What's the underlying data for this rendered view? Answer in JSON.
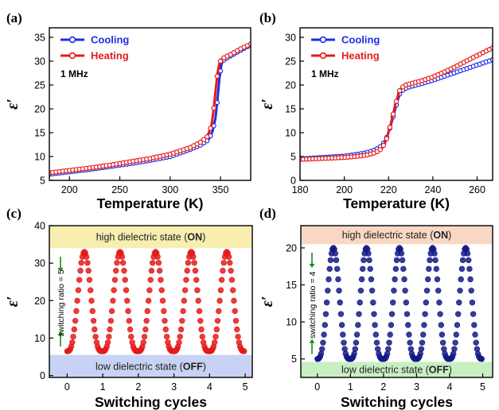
{
  "chart_data": [
    {
      "panel": "(a)",
      "type": "line",
      "xlabel": "Temperature (K)",
      "ylabel": "ε′",
      "xlim": [
        180,
        380
      ],
      "ylim": [
        5,
        37
      ],
      "x_ticks": [
        200,
        250,
        300,
        350
      ],
      "y_ticks": [
        5,
        10,
        15,
        20,
        25,
        30,
        35
      ],
      "annotation": "1 MHz",
      "legend_position": "top-left",
      "series": [
        {
          "name": "Cooling",
          "color": "#1e2de6",
          "x": [
            180,
            200,
            220,
            240,
            260,
            280,
            300,
            320,
            330,
            338,
            342,
            345,
            347,
            349,
            351,
            353,
            356,
            360,
            365,
            370,
            375,
            380
          ],
          "y": [
            6.3,
            6.8,
            7.3,
            7.9,
            8.5,
            9.2,
            10.0,
            11.5,
            12.4,
            13.5,
            15.2,
            18.0,
            22.0,
            26.5,
            29.4,
            30.2,
            30.6,
            31.1,
            31.7,
            32.3,
            32.9,
            33.4
          ]
        },
        {
          "name": "Heating",
          "color": "#e41a1a",
          "x": [
            180,
            200,
            220,
            240,
            260,
            280,
            300,
            320,
            330,
            337,
            341,
            343,
            345,
            347,
            349,
            351,
            355,
            360,
            365,
            370,
            375,
            380
          ],
          "y": [
            6.6,
            7.1,
            7.6,
            8.2,
            8.9,
            9.6,
            10.5,
            11.9,
            13.0,
            14.2,
            16.5,
            19.5,
            23.5,
            27.5,
            29.6,
            30.4,
            30.9,
            31.4,
            32.0,
            32.6,
            33.1,
            33.6
          ]
        }
      ]
    },
    {
      "panel": "(b)",
      "type": "line",
      "xlabel": "Temperature (K)",
      "ylabel": "ε′",
      "xlim": [
        180,
        267
      ],
      "ylim": [
        0,
        32
      ],
      "x_ticks": [
        180,
        200,
        220,
        240,
        260
      ],
      "y_ticks": [
        0,
        5,
        10,
        15,
        20,
        25,
        30
      ],
      "annotation": "1 MHz",
      "legend_position": "top-left",
      "series": [
        {
          "name": "Cooling",
          "color": "#1e2de6",
          "x": [
            180,
            190,
            200,
            205,
            210,
            214,
            217,
            219,
            221,
            223,
            225,
            227,
            230,
            235,
            240,
            245,
            250,
            255,
            260,
            267
          ],
          "y": [
            4.5,
            4.8,
            5.1,
            5.4,
            5.8,
            6.4,
            7.3,
            8.8,
            11.5,
            15.0,
            18.2,
            19.2,
            19.7,
            20.3,
            21.0,
            21.8,
            22.6,
            23.4,
            24.2,
            25.3
          ]
        },
        {
          "name": "Heating",
          "color": "#e41a1a",
          "x": [
            180,
            190,
            200,
            205,
            210,
            214,
            217,
            219,
            221,
            223,
            225,
            227,
            230,
            235,
            240,
            245,
            250,
            255,
            260,
            267
          ],
          "y": [
            4.4,
            4.6,
            4.8,
            5.0,
            5.3,
            5.8,
            6.7,
            8.5,
            11.8,
            15.8,
            18.9,
            19.9,
            20.3,
            20.9,
            21.7,
            22.7,
            23.8,
            25.0,
            26.2,
            27.8
          ]
        }
      ]
    },
    {
      "panel": "(c)",
      "type": "scatter",
      "xlabel": "Switching cycles",
      "ylabel": "ε′",
      "xlim": [
        -0.5,
        5.2
      ],
      "ylim": [
        -0.5,
        40
      ],
      "x_ticks": [
        0,
        1,
        2,
        3,
        4,
        5
      ],
      "y_ticks": [
        0,
        10,
        20,
        30,
        40
      ],
      "marker_color": "#e41a1a",
      "cycles": 5,
      "low_value": 6.5,
      "high_value": 33,
      "band_high": {
        "text_pre": "high dielectric state (",
        "text_bold": "ON",
        "text_post": ")",
        "color": "#f7eeb0",
        "range": [
          34,
          40
        ]
      },
      "band_low": {
        "text_pre": "low dielectric state (",
        "text_bold": "OFF",
        "text_post": ")",
        "color": "#c7d2f4",
        "range": [
          -0.5,
          5.5
        ]
      },
      "ratio_label": "switching ratio = 5"
    },
    {
      "panel": "(d)",
      "type": "scatter",
      "xlabel": "Switching cycles",
      "ylabel": "ε′",
      "xlim": [
        -0.5,
        5.3
      ],
      "ylim": [
        2.5,
        23
      ],
      "x_ticks": [
        0,
        1,
        2,
        3,
        4,
        5
      ],
      "y_ticks": [
        5,
        10,
        15,
        20
      ],
      "marker_color": "#141a86",
      "cycles": 5,
      "low_value": 5,
      "high_value": 20,
      "band_high": {
        "text_pre": "high dielectric state (",
        "text_bold": "ON",
        "text_post": ")",
        "color": "#f8d8c4",
        "range": [
          20.5,
          23
        ]
      },
      "band_low": {
        "text_pre": "low dielectric state (",
        "text_bold": "OFF",
        "text_post": ")",
        "color": "#c8efc2",
        "range": [
          2.5,
          4.6
        ]
      },
      "ratio_label": "switching ratio = 4"
    }
  ]
}
